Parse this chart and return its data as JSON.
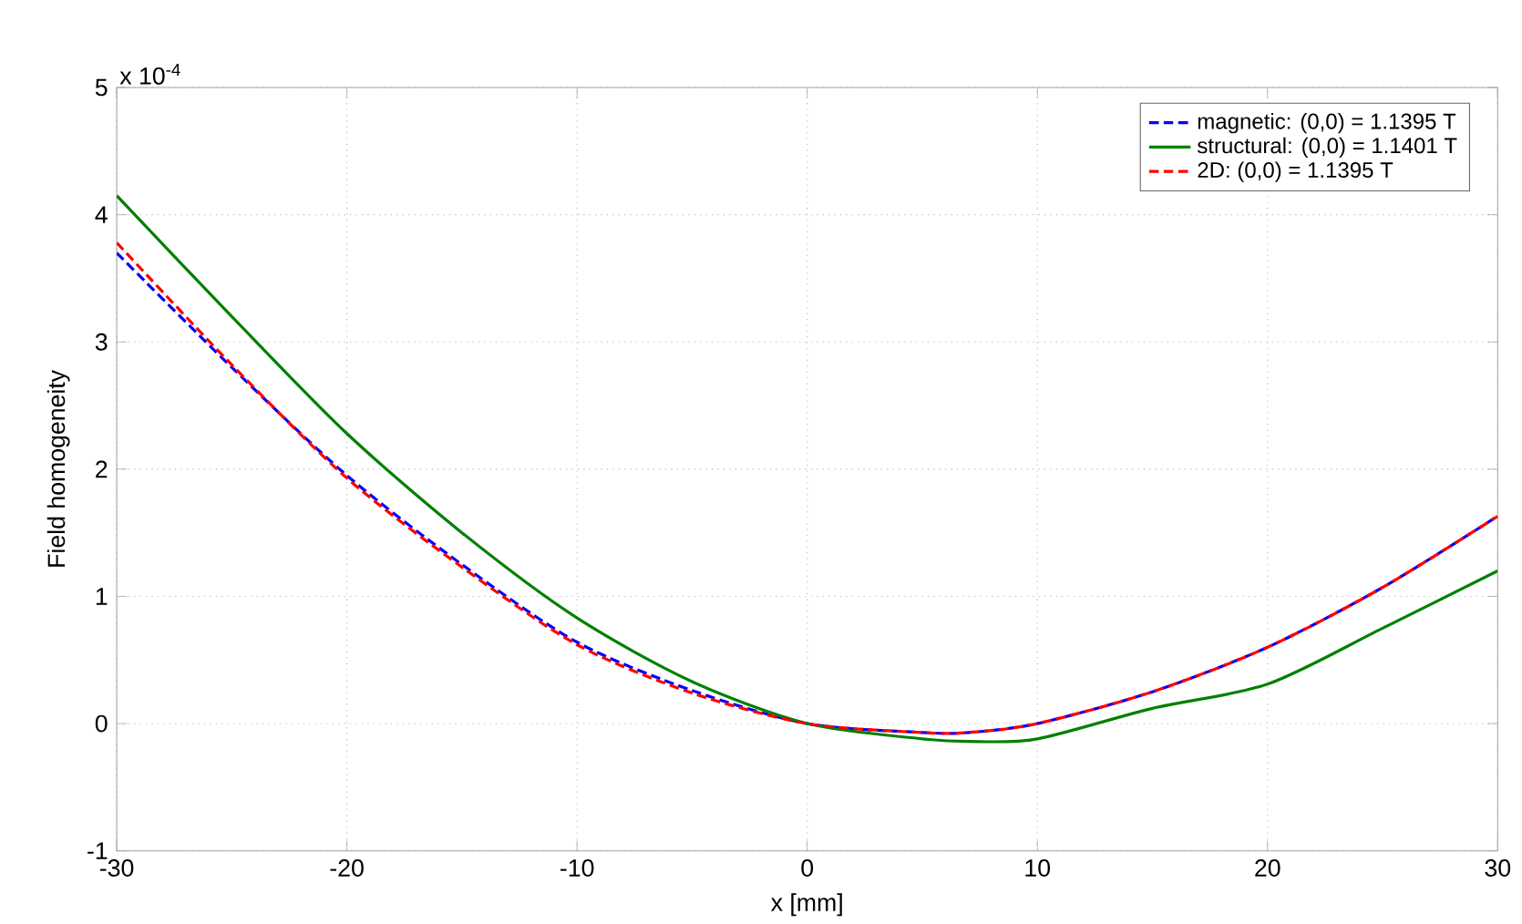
{
  "chart_data": {
    "type": "line",
    "xlabel": "x [mm]",
    "ylabel": "Field homogeneity",
    "annotations": [
      "x 10$^{-4}$"
    ],
    "x": [
      -30,
      -25,
      -20,
      -15,
      -10,
      -5,
      0,
      5,
      7,
      10,
      15,
      20,
      25,
      30
    ],
    "series": [
      {
        "name": "magnetic: (0,0) = 1.1395 T",
        "color": "#0000ff",
        "line_style": "dashed",
        "values": [
          3.7,
          2.8,
          1.95,
          1.25,
          0.64,
          0.26,
          0,
          -0.07,
          -0.07,
          0.0,
          0.25,
          0.6,
          1.07,
          1.63
        ]
      },
      {
        "name": "structural: (0,0) = 1.1401 T",
        "color": "#008000",
        "line_style": "solid",
        "values": [
          4.15,
          3.2,
          2.28,
          1.5,
          0.83,
          0.33,
          0,
          -0.12,
          -0.14,
          -0.12,
          0.12,
          0.31,
          0.75,
          1.2
        ]
      },
      {
        "name": "2D: (0,0) = 1.1395 T",
        "color": "#ff0000",
        "line_style": "dashed",
        "values": [
          3.78,
          2.82,
          1.93,
          1.23,
          0.62,
          0.24,
          0,
          -0.07,
          -0.07,
          0.0,
          0.25,
          0.6,
          1.07,
          1.63
        ]
      }
    ],
    "xlim": [
      -30,
      30
    ],
    "ylim": [
      -1,
      5
    ],
    "xticks": [
      -30,
      -20,
      -10,
      0,
      10,
      20,
      30
    ],
    "yticks": [
      -1,
      0,
      1,
      2,
      3,
      4,
      5
    ],
    "grid": true,
    "legend": "top right"
  }
}
